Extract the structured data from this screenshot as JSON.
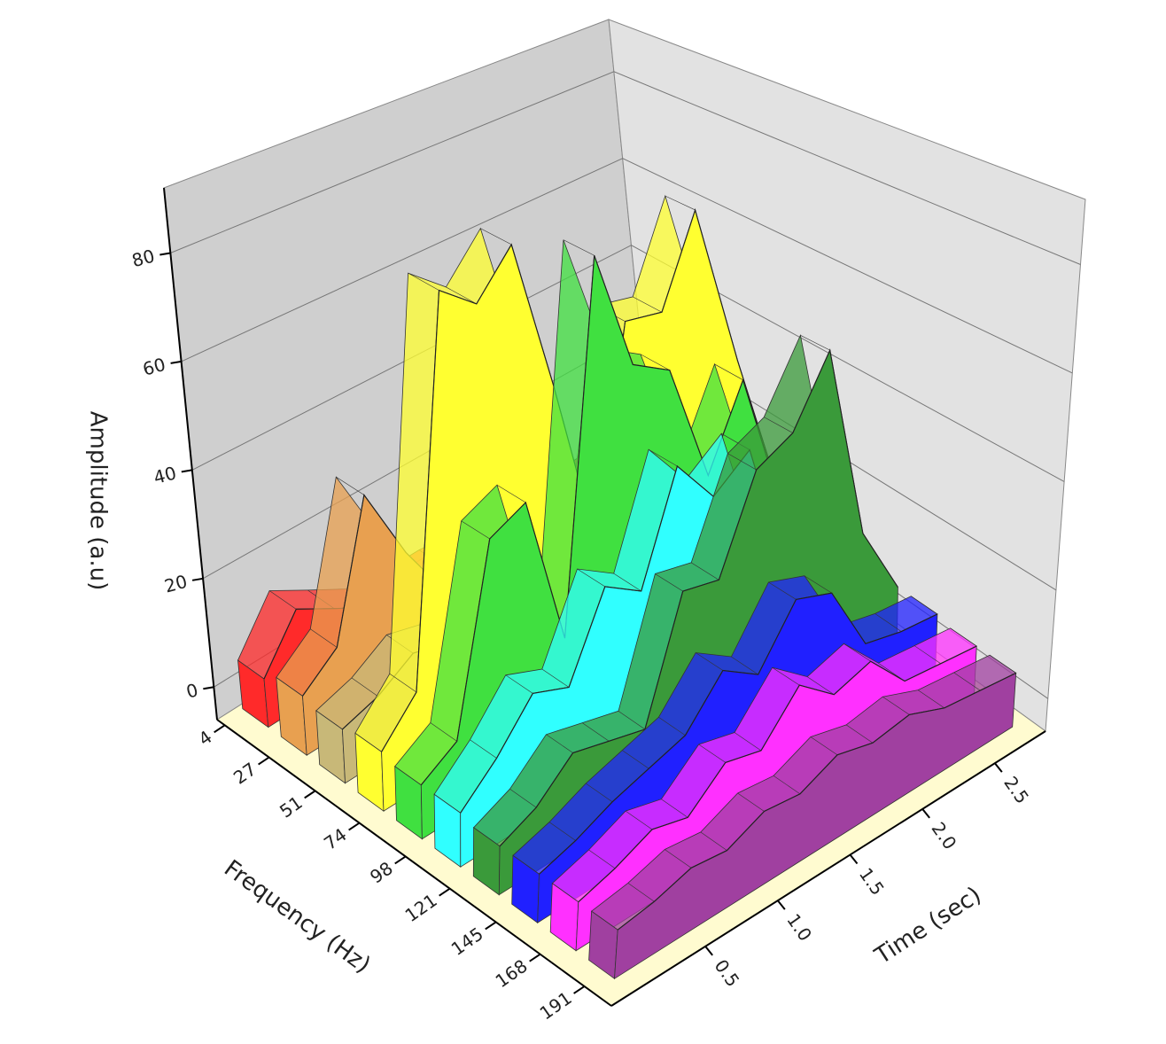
{
  "chart_data": {
    "type": "waterfall3d",
    "y_label": "Amplitude (a.u)",
    "z_label": "Frequency (Hz)",
    "x_label": "Time (sec)",
    "ylim": [
      -6,
      92
    ],
    "yticks": [
      0,
      20,
      40,
      60,
      80
    ],
    "zlim": [
      0,
      205
    ],
    "zticks": [
      4,
      27,
      51,
      74,
      98,
      121,
      145,
      168,
      191
    ],
    "xlim": [
      -0.15,
      2.85
    ],
    "xticks": [
      0.5,
      {
        "value": 1,
        "label": "1.0"
      },
      1.5,
      {
        "value": 2,
        "label": "2.0"
      },
      2.5
    ],
    "x": [
      0,
      0.25,
      0.5,
      0.75,
      1,
      1.25,
      1.5,
      1.75,
      2,
      2.25,
      2.5,
      2.75
    ],
    "series": [
      {
        "z": 2,
        "color": "#ff2a2a",
        "values": [
          3,
          12,
          8,
          4,
          3,
          3,
          2,
          2,
          2,
          2,
          2,
          2
        ]
      },
      {
        "z": 22,
        "color": "#e8a050",
        "values": [
          5,
          10,
          35,
          20,
          8,
          5,
          4,
          3,
          3,
          3,
          3,
          3
        ]
      },
      {
        "z": 42,
        "color": "#c8b878",
        "values": [
          4,
          6,
          10,
          8,
          6,
          5,
          4,
          4,
          4,
          4,
          4,
          4
        ]
      },
      {
        "z": 62,
        "color": "#ffff30",
        "values": [
          5,
          12,
          84,
          78,
          86,
          55,
          20,
          60,
          58,
          75,
          40,
          8
        ]
      },
      {
        "z": 82,
        "color": "#40e040",
        "values": [
          4,
          8,
          42,
          45,
          15,
          85,
          60,
          55,
          30,
          45,
          15,
          6
        ]
      },
      {
        "z": 102,
        "color": "#30ffff",
        "values": [
          4,
          10,
          18,
          15,
          30,
          25,
          45,
          35,
          40,
          12,
          8,
          6
        ]
      },
      {
        "z": 122,
        "color": "#3a9a3a",
        "values": [
          3,
          6,
          12,
          10,
          8,
          30,
          28,
          45,
          48,
          60,
          20,
          5
        ]
      },
      {
        "z": 142,
        "color": "#2020ff",
        "values": [
          3,
          5,
          8,
          10,
          12,
          20,
          15,
          25,
          22,
          8,
          6,
          5
        ]
      },
      {
        "z": 162,
        "color": "#ff30ff",
        "values": [
          3,
          5,
          8,
          6,
          12,
          10,
          18,
          12,
          14,
          6,
          5,
          4
        ]
      },
      {
        "z": 182,
        "color": "#a040a0",
        "values": [
          3,
          4,
          6,
          5,
          8,
          7,
          10,
          8,
          9,
          6,
          5,
          4
        ]
      }
    ]
  }
}
